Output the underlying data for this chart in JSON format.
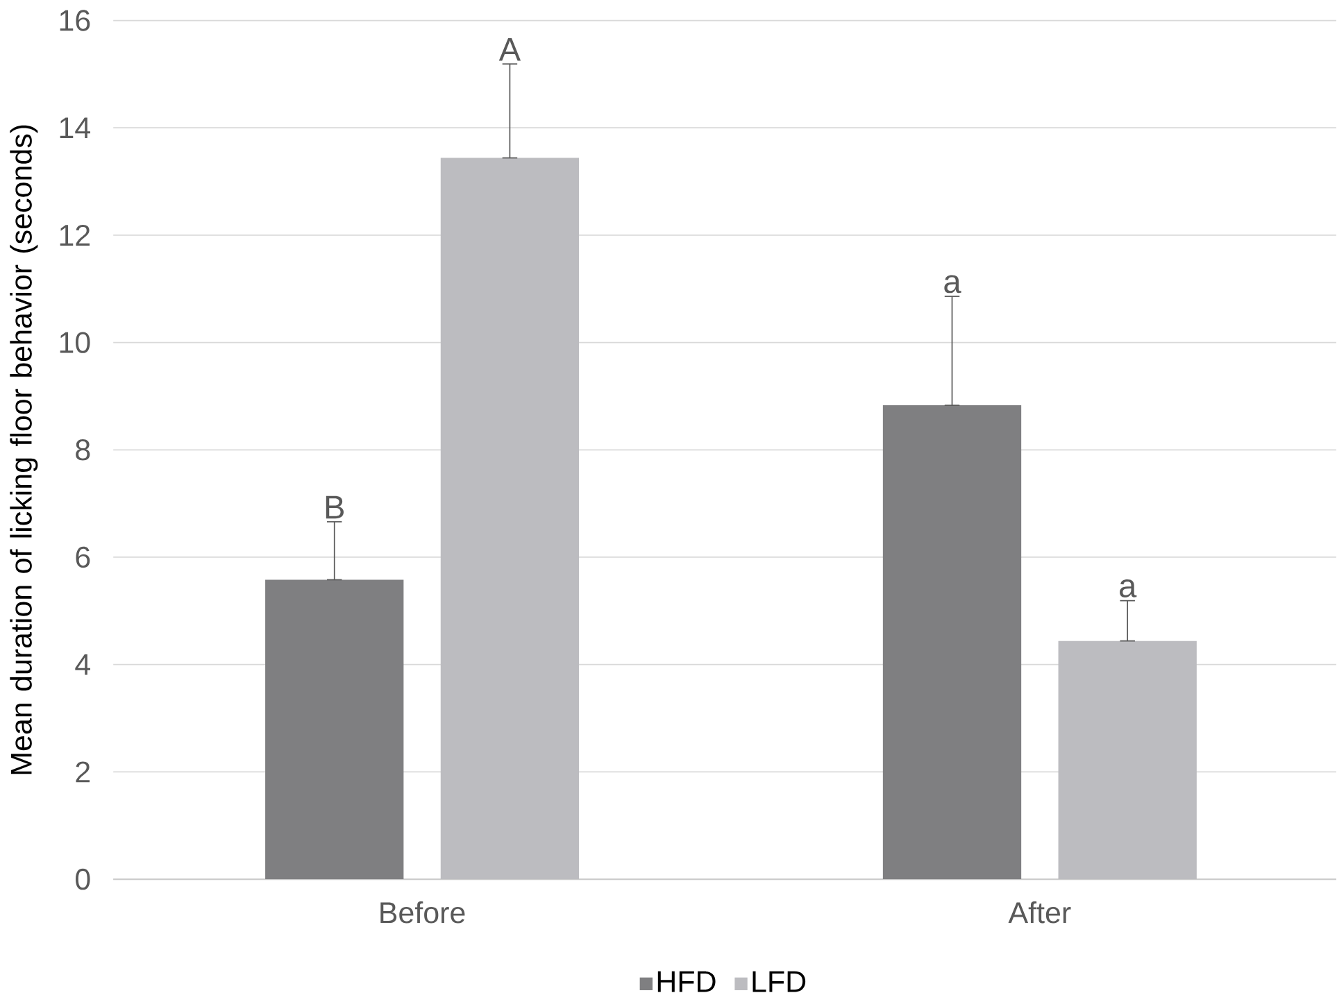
{
  "chart_data": {
    "type": "bar",
    "ylabel": "Mean duration of licking floor behavior (seconds)",
    "categories": [
      "Before",
      "After"
    ],
    "series": [
      {
        "name": "HFD",
        "color": "#7f7f81",
        "values": [
          5.58,
          8.83
        ],
        "errors": [
          [
            5.58,
            6.66
          ],
          [
            8.83,
            10.86
          ]
        ]
      },
      {
        "name": "LFD",
        "color": "#bcbcc0",
        "values": [
          13.44,
          4.44
        ],
        "errors": [
          [
            13.44,
            15.19
          ],
          [
            4.44,
            5.19
          ]
        ]
      }
    ],
    "ylim": [
      0,
      16
    ],
    "yticks": [
      0,
      2,
      4,
      6,
      8,
      10,
      12,
      14,
      16
    ],
    "grid": "y",
    "legend": "bottom",
    "annotations": [
      "B",
      "A",
      "a",
      "a"
    ]
  }
}
